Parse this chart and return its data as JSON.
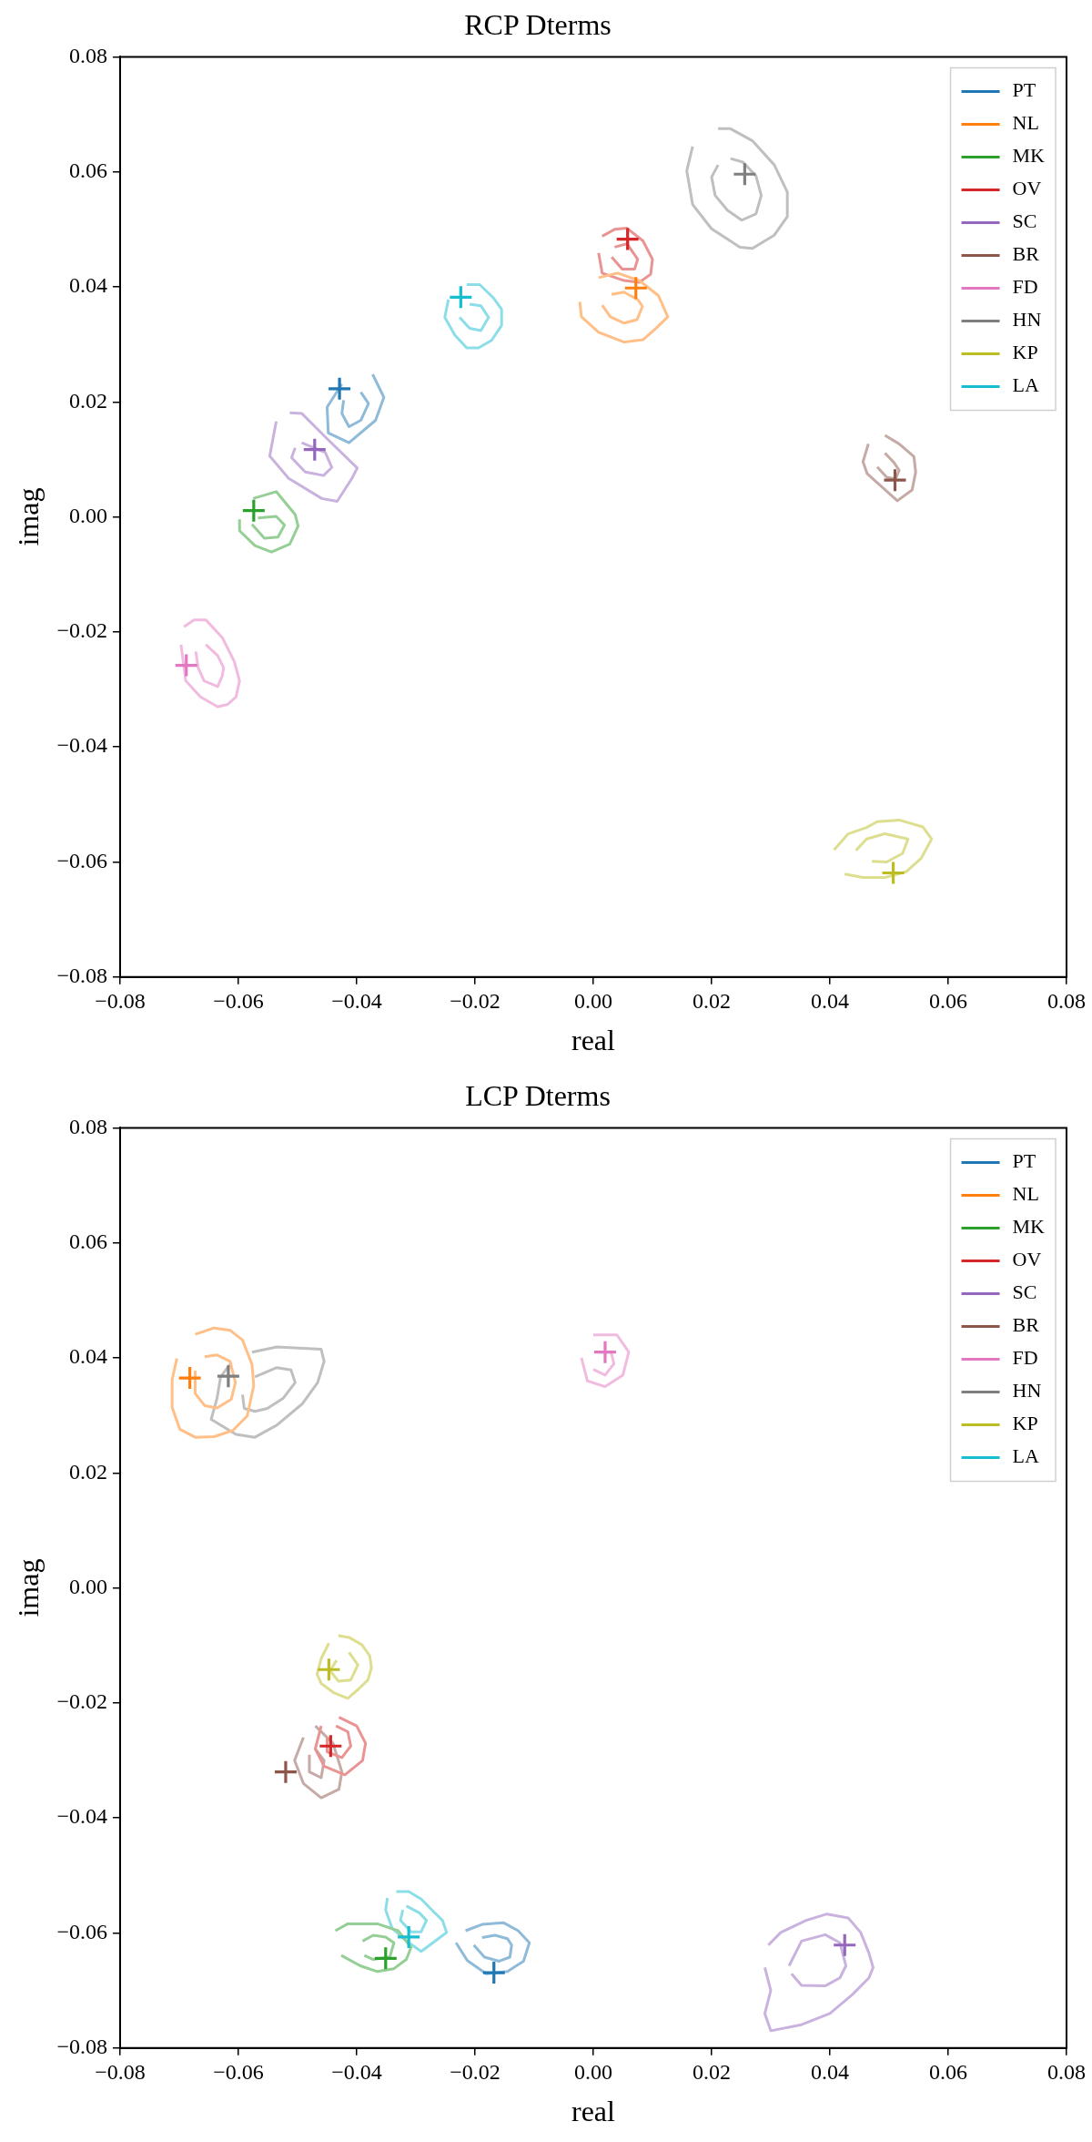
{
  "chart_data": [
    {
      "type": "scatter",
      "title": "RCP Dterms",
      "xlabel": "real",
      "ylabel": "imag",
      "xlim": [
        -0.08,
        0.08
      ],
      "ylim": [
        -0.08,
        0.08
      ],
      "xticks": [
        {
          "value": -0.08,
          "label": "−0.08"
        },
        {
          "value": -0.06,
          "label": "−0.06"
        },
        {
          "value": -0.04,
          "label": "−0.04"
        },
        {
          "value": -0.02,
          "label": "−0.02"
        },
        {
          "value": 0,
          "label": "0.00"
        },
        {
          "value": 0.02,
          "label": "0.02"
        },
        {
          "value": 0.04,
          "label": "0.04"
        },
        {
          "value": 0.06,
          "label": "0.06"
        },
        {
          "value": 0.08,
          "label": "0.08"
        }
      ],
      "yticks": [
        {
          "value": -0.08,
          "label": "−0.08"
        },
        {
          "value": -0.06,
          "label": "−0.06"
        },
        {
          "value": -0.04,
          "label": "−0.04"
        },
        {
          "value": -0.02,
          "label": "−0.02"
        },
        {
          "value": 0,
          "label": "0.00"
        },
        {
          "value": 0.02,
          "label": "0.02"
        },
        {
          "value": 0.04,
          "label": "0.04"
        },
        {
          "value": 0.06,
          "label": "0.06"
        },
        {
          "value": 0.08,
          "label": "0.08"
        }
      ],
      "legend": "top right",
      "series": [
        {
          "name": "PT",
          "type": "scatter",
          "marker": "cross",
          "color": "#1f77b4",
          "x": [
            -0.0429
          ],
          "values": [
            0.0223
          ]
        },
        {
          "name": "NL",
          "type": "scatter",
          "marker": "cross",
          "color": "#ff7f0e",
          "x": [
            0.0072
          ],
          "values": [
            0.0398
          ]
        },
        {
          "name": "MK",
          "type": "scatter",
          "marker": "cross",
          "color": "#2ca02c",
          "x": [
            -0.0574
          ],
          "values": [
            0.0011
          ]
        },
        {
          "name": "OV",
          "type": "scatter",
          "marker": "cross",
          "color": "#d62728",
          "x": [
            0.0058
          ],
          "values": [
            0.0483
          ]
        },
        {
          "name": "SC",
          "type": "scatter",
          "marker": "cross",
          "color": "#9467bd",
          "x": [
            -0.0471
          ],
          "values": [
            0.0117
          ]
        },
        {
          "name": "BR",
          "type": "scatter",
          "marker": "cross",
          "color": "#8c564b",
          "x": [
            0.051
          ],
          "values": [
            0.0064
          ]
        },
        {
          "name": "FD",
          "type": "scatter",
          "marker": "cross",
          "color": "#e377c2",
          "x": [
            -0.0688
          ],
          "values": [
            -0.0258
          ]
        },
        {
          "name": "HN",
          "type": "scatter",
          "marker": "cross",
          "color": "#7f7f7f",
          "x": [
            0.0256
          ],
          "values": [
            0.0596
          ]
        },
        {
          "name": "KP",
          "type": "scatter",
          "marker": "cross",
          "color": "#bcbd22",
          "x": [
            0.0507
          ],
          "values": [
            -0.0619
          ]
        },
        {
          "name": "LA",
          "type": "scatter",
          "marker": "cross",
          "color": "#17becf",
          "x": [
            -0.0224
          ],
          "values": [
            0.0382
          ]
        },
        {
          "type": "line",
          "color": "#8fbbd9",
          "x": [
            -0.0373,
            -0.0354,
            -0.0368,
            -0.0413,
            -0.0448,
            -0.045,
            -0.0425
          ],
          "values": [
            0.0248,
            0.0208,
            0.0168,
            0.0129,
            0.0146,
            0.0191,
            0.0231
          ]
        },
        {
          "type": "line",
          "color": "#8fbbd9",
          "x": [
            -0.0393,
            -0.038,
            -0.0393,
            -0.0413,
            -0.0425,
            -0.0422
          ],
          "values": [
            0.0217,
            0.0197,
            0.0168,
            0.0157,
            0.018,
            0.0203
          ]
        },
        {
          "type": "line",
          "color": "#ffbf86",
          "x": [
            0.0009,
            0.0041,
            0.0078,
            0.011,
            0.0126,
            0.0105,
            0.0084,
            0.0052,
            0.0009,
            -0.002,
            -0.0023
          ],
          "values": [
            0.0416,
            0.0424,
            0.0411,
            0.0385,
            0.0348,
            0.0327,
            0.0308,
            0.0304,
            0.0321,
            0.0348,
            0.0374
          ]
        },
        {
          "type": "line",
          "color": "#ffbf86",
          "x": [
            0.0031,
            0.0052,
            0.0076,
            0.0083,
            0.0074,
            0.0052,
            0.0029,
            0.0015
          ],
          "values": [
            0.0387,
            0.0391,
            0.0377,
            0.0366,
            0.0343,
            0.0337,
            0.0348,
            0.0368
          ]
        },
        {
          "type": "line",
          "color": "#95cf95",
          "x": [
            -0.0575,
            -0.0536,
            -0.0504,
            -0.0499,
            -0.0513,
            -0.0544,
            -0.0572,
            -0.0598,
            -0.0598
          ],
          "values": [
            0.0032,
            0.0044,
            0.0004,
            -0.0016,
            -0.0047,
            -0.0061,
            -0.005,
            -0.0024,
            -0.0004
          ]
        },
        {
          "type": "line",
          "color": "#95cf95",
          "x": [
            -0.0567,
            -0.0536,
            -0.0522,
            -0.0533,
            -0.0556,
            -0.0577
          ],
          "values": [
            -0.0002,
            0.0001,
            -0.0014,
            -0.0035,
            -0.0037,
            -0.0013
          ]
        },
        {
          "type": "line",
          "color": "#ea9393",
          "x": [
            0.0015,
            0.0036,
            0.0057,
            0.0084,
            0.01,
            0.0097,
            0.0078,
            0.0052,
            0.0015,
            0.0009
          ],
          "values": [
            0.0488,
            0.05,
            0.0502,
            0.048,
            0.0448,
            0.0422,
            0.0408,
            0.0411,
            0.0424,
            0.0459
          ]
        },
        {
          "type": "line",
          "color": "#ea9393",
          "x": [
            0.0036,
            0.0057,
            0.0075,
            0.007,
            0.0049,
            0.0031
          ],
          "values": [
            0.0469,
            0.0475,
            0.0448,
            0.0431,
            0.0431,
            0.0452
          ]
        },
        {
          "type": "line",
          "color": "#c9b3de",
          "x": [
            -0.0513,
            -0.0493,
            -0.0448,
            -0.0399,
            -0.0408,
            -0.0433,
            -0.0459,
            -0.0515,
            -0.0547,
            -0.0536
          ],
          "values": [
            0.0181,
            0.018,
            0.0134,
            0.0085,
            0.0067,
            0.0027,
            0.0032,
            0.0067,
            0.0106,
            0.0166
          ]
        },
        {
          "type": "line",
          "color": "#c9b3de",
          "x": [
            -0.0493,
            -0.0453,
            -0.0442,
            -0.0456,
            -0.0487,
            -0.051,
            -0.0504
          ],
          "values": [
            0.0129,
            0.0112,
            0.0086,
            0.0072,
            0.0078,
            0.0103,
            0.012
          ]
        },
        {
          "type": "line",
          "color": "#c5aaa5",
          "x": [
            0.0493,
            0.0517,
            0.0542,
            0.0545,
            0.0539,
            0.0514,
            0.0487,
            0.0463,
            0.0456,
            0.0465
          ],
          "values": [
            0.0142,
            0.0127,
            0.0105,
            0.0078,
            0.0047,
            0.0028,
            0.0053,
            0.0075,
            0.0096,
            0.0127
          ]
        },
        {
          "type": "line",
          "color": "#c5aaa5",
          "x": [
            0.0493,
            0.0508,
            0.0517,
            0.0511,
            0.0496,
            0.048
          ],
          "values": [
            0.0111,
            0.0095,
            0.0081,
            0.0066,
            0.0069,
            0.0087
          ]
        },
        {
          "type": "line",
          "color": "#f1bbe0",
          "x": [
            -0.0692,
            -0.0675,
            -0.0655,
            -0.0627,
            -0.0607,
            -0.0598,
            -0.0604,
            -0.0618,
            -0.0635,
            -0.0664,
            -0.0689,
            -0.0697
          ],
          "values": [
            -0.0191,
            -0.0179,
            -0.0179,
            -0.021,
            -0.0251,
            -0.0285,
            -0.0313,
            -0.0326,
            -0.033,
            -0.0313,
            -0.0285,
            -0.0222
          ]
        },
        {
          "type": "line",
          "color": "#f1bbe0",
          "x": [
            -0.0655,
            -0.0635,
            -0.0625,
            -0.0627,
            -0.0635,
            -0.0658,
            -0.0668,
            -0.0672
          ],
          "values": [
            -0.0222,
            -0.0241,
            -0.0262,
            -0.0276,
            -0.0295,
            -0.0285,
            -0.0262,
            -0.0234
          ]
        },
        {
          "type": "line",
          "color": "#bfbfbf",
          "x": [
            0.0211,
            0.0232,
            0.0269,
            0.0306,
            0.0328,
            0.0328,
            0.0306,
            0.0269,
            0.0248,
            0.02,
            0.0168,
            0.0158,
            0.0168
          ],
          "values": [
            0.0675,
            0.0675,
            0.0654,
            0.0612,
            0.0565,
            0.0522,
            0.049,
            0.0467,
            0.0469,
            0.0501,
            0.0543,
            0.0602,
            0.0644
          ]
        },
        {
          "type": "line",
          "color": "#bfbfbf",
          "x": [
            0.0232,
            0.0253,
            0.0275,
            0.0284,
            0.0275,
            0.0251,
            0.0227,
            0.0206,
            0.02,
            0.0211
          ],
          "values": [
            0.0623,
            0.0617,
            0.0593,
            0.0559,
            0.0527,
            0.0516,
            0.0533,
            0.0559,
            0.0591,
            0.0612
          ]
        },
        {
          "type": "line",
          "color": "#ddde90",
          "x": [
            0.0407,
            0.0431,
            0.0462,
            0.048,
            0.0517,
            0.0557,
            0.0572,
            0.0554,
            0.0529,
            0.0493,
            0.0456,
            0.0425
          ],
          "values": [
            -0.0579,
            -0.0551,
            -0.054,
            -0.053,
            -0.0527,
            -0.0539,
            -0.056,
            -0.0594,
            -0.0617,
            -0.0627,
            -0.0627,
            -0.0621
          ]
        },
        {
          "type": "line",
          "color": "#ddde90",
          "x": [
            0.0444,
            0.0462,
            0.0493,
            0.0532,
            0.0523,
            0.0496,
            0.0471
          ],
          "values": [
            -0.058,
            -0.056,
            -0.0551,
            -0.056,
            -0.0585,
            -0.06,
            -0.0599
          ]
        },
        {
          "type": "line",
          "color": "#8bdee7",
          "x": [
            -0.0214,
            -0.0192,
            -0.0169,
            -0.0155,
            -0.0155,
            -0.0172,
            -0.0194,
            -0.0214,
            -0.0234,
            -0.0251,
            -0.0245
          ],
          "values": [
            0.0404,
            0.0404,
            0.0381,
            0.0361,
            0.0333,
            0.0307,
            0.0294,
            0.0294,
            0.0316,
            0.0347,
            0.0378
          ]
        },
        {
          "type": "line",
          "color": "#8bdee7",
          "x": [
            -0.0209,
            -0.019,
            -0.0177,
            -0.019,
            -0.0209,
            -0.0226
          ],
          "values": [
            0.037,
            0.0367,
            0.0347,
            0.0324,
            0.0328,
            0.0347
          ]
        }
      ]
    },
    {
      "type": "scatter",
      "title": "LCP Dterms",
      "xlabel": "real",
      "ylabel": "imag",
      "xlim": [
        -0.08,
        0.08
      ],
      "ylim": [
        -0.08,
        0.08
      ],
      "xticks": [
        {
          "value": -0.08,
          "label": "−0.08"
        },
        {
          "value": -0.06,
          "label": "−0.06"
        },
        {
          "value": -0.04,
          "label": "−0.04"
        },
        {
          "value": -0.02,
          "label": "−0.02"
        },
        {
          "value": 0,
          "label": "0.00"
        },
        {
          "value": 0.02,
          "label": "0.02"
        },
        {
          "value": 0.04,
          "label": "0.04"
        },
        {
          "value": 0.06,
          "label": "0.06"
        },
        {
          "value": 0.08,
          "label": "0.08"
        }
      ],
      "yticks": [
        {
          "value": -0.08,
          "label": "−0.08"
        },
        {
          "value": -0.06,
          "label": "−0.06"
        },
        {
          "value": -0.04,
          "label": "−0.04"
        },
        {
          "value": -0.02,
          "label": "−0.02"
        },
        {
          "value": 0,
          "label": "0.00"
        },
        {
          "value": 0.02,
          "label": "0.02"
        },
        {
          "value": 0.04,
          "label": "0.04"
        },
        {
          "value": 0.06,
          "label": "0.06"
        },
        {
          "value": 0.08,
          "label": "0.08"
        }
      ],
      "legend": "top right",
      "series": [
        {
          "name": "PT",
          "type": "scatter",
          "marker": "cross",
          "color": "#1f77b4",
          "x": [
            -0.0168
          ],
          "values": [
            -0.0669
          ]
        },
        {
          "name": "NL",
          "type": "scatter",
          "marker": "cross",
          "color": "#ff7f0e",
          "x": [
            -0.0682
          ],
          "values": [
            0.0365
          ]
        },
        {
          "name": "MK",
          "type": "scatter",
          "marker": "cross",
          "color": "#2ca02c",
          "x": [
            -0.0351
          ],
          "values": [
            -0.0644
          ]
        },
        {
          "name": "OV",
          "type": "scatter",
          "marker": "cross",
          "color": "#d62728",
          "x": [
            -0.0444
          ],
          "values": [
            -0.0275
          ]
        },
        {
          "name": "SC",
          "type": "scatter",
          "marker": "cross",
          "color": "#9467bd",
          "x": [
            0.0425
          ],
          "values": [
            -0.0621
          ]
        },
        {
          "name": "BR",
          "type": "scatter",
          "marker": "cross",
          "color": "#8c564b",
          "x": [
            -0.052
          ],
          "values": [
            -0.032
          ]
        },
        {
          "name": "FD",
          "type": "scatter",
          "marker": "cross",
          "color": "#e377c2",
          "x": [
            0.002
          ],
          "values": [
            0.041
          ]
        },
        {
          "name": "HN",
          "type": "scatter",
          "marker": "cross",
          "color": "#7f7f7f",
          "x": [
            -0.0617
          ],
          "values": [
            0.0368
          ]
        },
        {
          "name": "KP",
          "type": "scatter",
          "marker": "cross",
          "color": "#bcbd22",
          "x": [
            -0.0447
          ],
          "values": [
            -0.0142
          ]
        },
        {
          "name": "LA",
          "type": "scatter",
          "marker": "cross",
          "color": "#17becf",
          "x": [
            -0.0312
          ],
          "values": [
            -0.0607
          ]
        },
        {
          "type": "line",
          "color": "#8fbbd9",
          "x": [
            -0.0216,
            -0.0188,
            -0.0152,
            -0.0127,
            -0.0108,
            -0.0118,
            -0.0145,
            -0.0181,
            -0.0213,
            -0.0232
          ],
          "values": [
            -0.0596,
            -0.0585,
            -0.0582,
            -0.0596,
            -0.0617,
            -0.0649,
            -0.0667,
            -0.0671,
            -0.0648,
            -0.0617
          ]
        },
        {
          "type": "line",
          "color": "#8fbbd9",
          "x": [
            -0.0188,
            -0.0166,
            -0.0145,
            -0.0138,
            -0.0141,
            -0.0159,
            -0.0184,
            -0.0202
          ],
          "values": [
            -0.0608,
            -0.0604,
            -0.061,
            -0.0621,
            -0.0642,
            -0.0649,
            -0.0642,
            -0.0621
          ]
        },
        {
          "type": "line",
          "color": "#ffbf86",
          "x": [
            -0.0673,
            -0.0641,
            -0.0614,
            -0.0593,
            -0.0577,
            -0.0574,
            -0.0585,
            -0.0609,
            -0.0641,
            -0.0673,
            -0.0699,
            -0.0712,
            -0.0712,
            -0.0704
          ],
          "values": [
            0.0441,
            0.0452,
            0.0448,
            0.0431,
            0.0389,
            0.0352,
            0.0299,
            0.0274,
            0.0263,
            0.0262,
            0.0276,
            0.0314,
            0.0362,
            0.0399
          ]
        },
        {
          "type": "line",
          "color": "#ffbf86",
          "x": [
            -0.0657,
            -0.0636,
            -0.0614,
            -0.0605,
            -0.0612,
            -0.0636,
            -0.0657,
            -0.0673,
            -0.0673
          ],
          "values": [
            0.0402,
            0.0405,
            0.0394,
            0.0357,
            0.0328,
            0.0313,
            0.0317,
            0.0338,
            0.0378
          ]
        },
        {
          "type": "line",
          "color": "#95cf95",
          "x": [
            -0.0436,
            -0.0415,
            -0.0365,
            -0.033,
            -0.0308,
            -0.0316,
            -0.0337,
            -0.0365,
            -0.0394,
            -0.0426
          ],
          "values": [
            -0.0596,
            -0.0584,
            -0.0584,
            -0.0596,
            -0.0625,
            -0.0646,
            -0.0662,
            -0.0667,
            -0.0657,
            -0.0639
          ]
        },
        {
          "type": "line",
          "color": "#95cf95",
          "x": [
            -0.039,
            -0.0372,
            -0.0351,
            -0.0337,
            -0.0344,
            -0.0372,
            -0.0387
          ],
          "values": [
            -0.0614,
            -0.0604,
            -0.0607,
            -0.0617,
            -0.0642,
            -0.0646,
            -0.0639
          ]
        },
        {
          "type": "line",
          "color": "#ea9393",
          "x": [
            -0.043,
            -0.04,
            -0.0385,
            -0.039,
            -0.042,
            -0.0455,
            -0.047,
            -0.046
          ],
          "values": [
            -0.0225,
            -0.024,
            -0.027,
            -0.03,
            -0.0325,
            -0.031,
            -0.028,
            -0.024
          ]
        },
        {
          "type": "line",
          "color": "#ea9393",
          "x": [
            -0.0435,
            -0.0415,
            -0.041,
            -0.0425,
            -0.045,
            -0.045
          ],
          "values": [
            -0.024,
            -0.025,
            -0.0275,
            -0.0295,
            -0.0285,
            -0.026
          ]
        },
        {
          "type": "line",
          "color": "#c9b3de",
          "x": [
            0.0296,
            0.0317,
            0.036,
            0.0395,
            0.0431,
            0.0452,
            0.0466,
            0.0473,
            0.0466,
            0.0438,
            0.04,
            0.035,
            0.03,
            0.029,
            0.03,
            0.029
          ],
          "values": [
            -0.0621,
            -0.0599,
            -0.0578,
            -0.0567,
            -0.0574,
            -0.0599,
            -0.0635,
            -0.066,
            -0.0678,
            -0.0707,
            -0.074,
            -0.076,
            -0.077,
            -0.074,
            -0.07,
            -0.066
          ]
        },
        {
          "type": "line",
          "color": "#c9b3de",
          "x": [
            0.0331,
            0.0352,
            0.0392,
            0.0417,
            0.0427,
            0.0417,
            0.0392,
            0.0352,
            0.0335
          ],
          "values": [
            -0.0657,
            -0.0614,
            -0.0603,
            -0.0617,
            -0.0657,
            -0.0678,
            -0.0692,
            -0.0691,
            -0.0671
          ]
        },
        {
          "type": "line",
          "color": "#c5aaa5",
          "x": [
            -0.047,
            -0.044,
            -0.0425,
            -0.043,
            -0.046,
            -0.049,
            -0.0505,
            -0.049
          ],
          "values": [
            -0.024,
            -0.027,
            -0.032,
            -0.035,
            -0.0365,
            -0.034,
            -0.03,
            -0.026
          ]
        },
        {
          "type": "line",
          "color": "#c5aaa5",
          "x": [
            -0.047,
            -0.0455,
            -0.046,
            -0.048,
            -0.048
          ],
          "values": [
            -0.028,
            -0.03,
            -0.033,
            -0.032,
            -0.029
          ]
        },
        {
          "type": "line",
          "color": "#f1bbe0",
          "x": [
            0,
            0.004,
            0.006,
            0.005,
            0.002,
            -0.001,
            -0.002
          ],
          "values": [
            0.044,
            0.044,
            0.041,
            0.037,
            0.035,
            0.036,
            0.04
          ]
        },
        {
          "type": "line",
          "color": "#f1bbe0",
          "x": [
            0.001,
            0.003,
            0.0035,
            0.002,
            0
          ],
          "values": [
            0.041,
            0.041,
            0.039,
            0.037,
            0.038
          ]
        },
        {
          "type": "line",
          "color": "#bfbfbf",
          "x": [
            -0.0577,
            -0.0535,
            -0.046,
            -0.0455,
            -0.0466,
            -0.0492,
            -0.0535,
            -0.0572,
            -0.0604,
            -0.0646,
            -0.0636,
            -0.063,
            -0.0614
          ],
          "values": [
            0.041,
            0.0419,
            0.0415,
            0.0394,
            0.0357,
            0.032,
            0.0283,
            0.0262,
            0.0267,
            0.0293,
            0.033,
            0.0367,
            0.0389
          ]
        },
        {
          "type": "line",
          "color": "#bfbfbf",
          "x": [
            -0.0572,
            -0.0535,
            -0.0511,
            -0.0504,
            -0.0524,
            -0.0551,
            -0.0572,
            -0.059,
            -0.0593
          ],
          "values": [
            0.0367,
            0.0383,
            0.0379,
            0.0357,
            0.033,
            0.0312,
            0.0307,
            0.0312,
            0.0336
          ]
        },
        {
          "type": "line",
          "color": "#ddde90",
          "x": [
            -0.0431,
            -0.0413,
            -0.0391,
            -0.0378,
            -0.0375,
            -0.0381,
            -0.0397,
            -0.0415,
            -0.0439,
            -0.046,
            -0.0467,
            -0.046,
            -0.0447
          ],
          "values": [
            -0.0083,
            -0.0086,
            -0.0099,
            -0.0118,
            -0.0139,
            -0.016,
            -0.0176,
            -0.0192,
            -0.0182,
            -0.0166,
            -0.015,
            -0.0123,
            -0.0096
          ]
        },
        {
          "type": "line",
          "color": "#ddde90",
          "x": [
            -0.0413,
            -0.0398,
            -0.041,
            -0.0431,
            -0.0445,
            -0.0434
          ],
          "values": [
            -0.0112,
            -0.0134,
            -0.016,
            -0.0162,
            -0.0144,
            -0.0126
          ]
        },
        {
          "type": "line",
          "color": "#8bdee7",
          "x": [
            -0.0333,
            -0.0312,
            -0.0291,
            -0.0269,
            -0.0255,
            -0.0248,
            -0.0262,
            -0.0291,
            -0.0316,
            -0.034,
            -0.0351,
            -0.0348
          ],
          "values": [
            -0.0528,
            -0.0528,
            -0.0541,
            -0.0564,
            -0.0578,
            -0.0599,
            -0.061,
            -0.0632,
            -0.0614,
            -0.0592,
            -0.056,
            -0.0539
          ]
        },
        {
          "type": "line",
          "color": "#8bdee7",
          "x": [
            -0.0316,
            -0.0294,
            -0.0282,
            -0.0291,
            -0.0308,
            -0.0326,
            -0.0322
          ],
          "values": [
            -0.0553,
            -0.0565,
            -0.0578,
            -0.0598,
            -0.0598,
            -0.0578,
            -0.056
          ]
        }
      ]
    }
  ]
}
